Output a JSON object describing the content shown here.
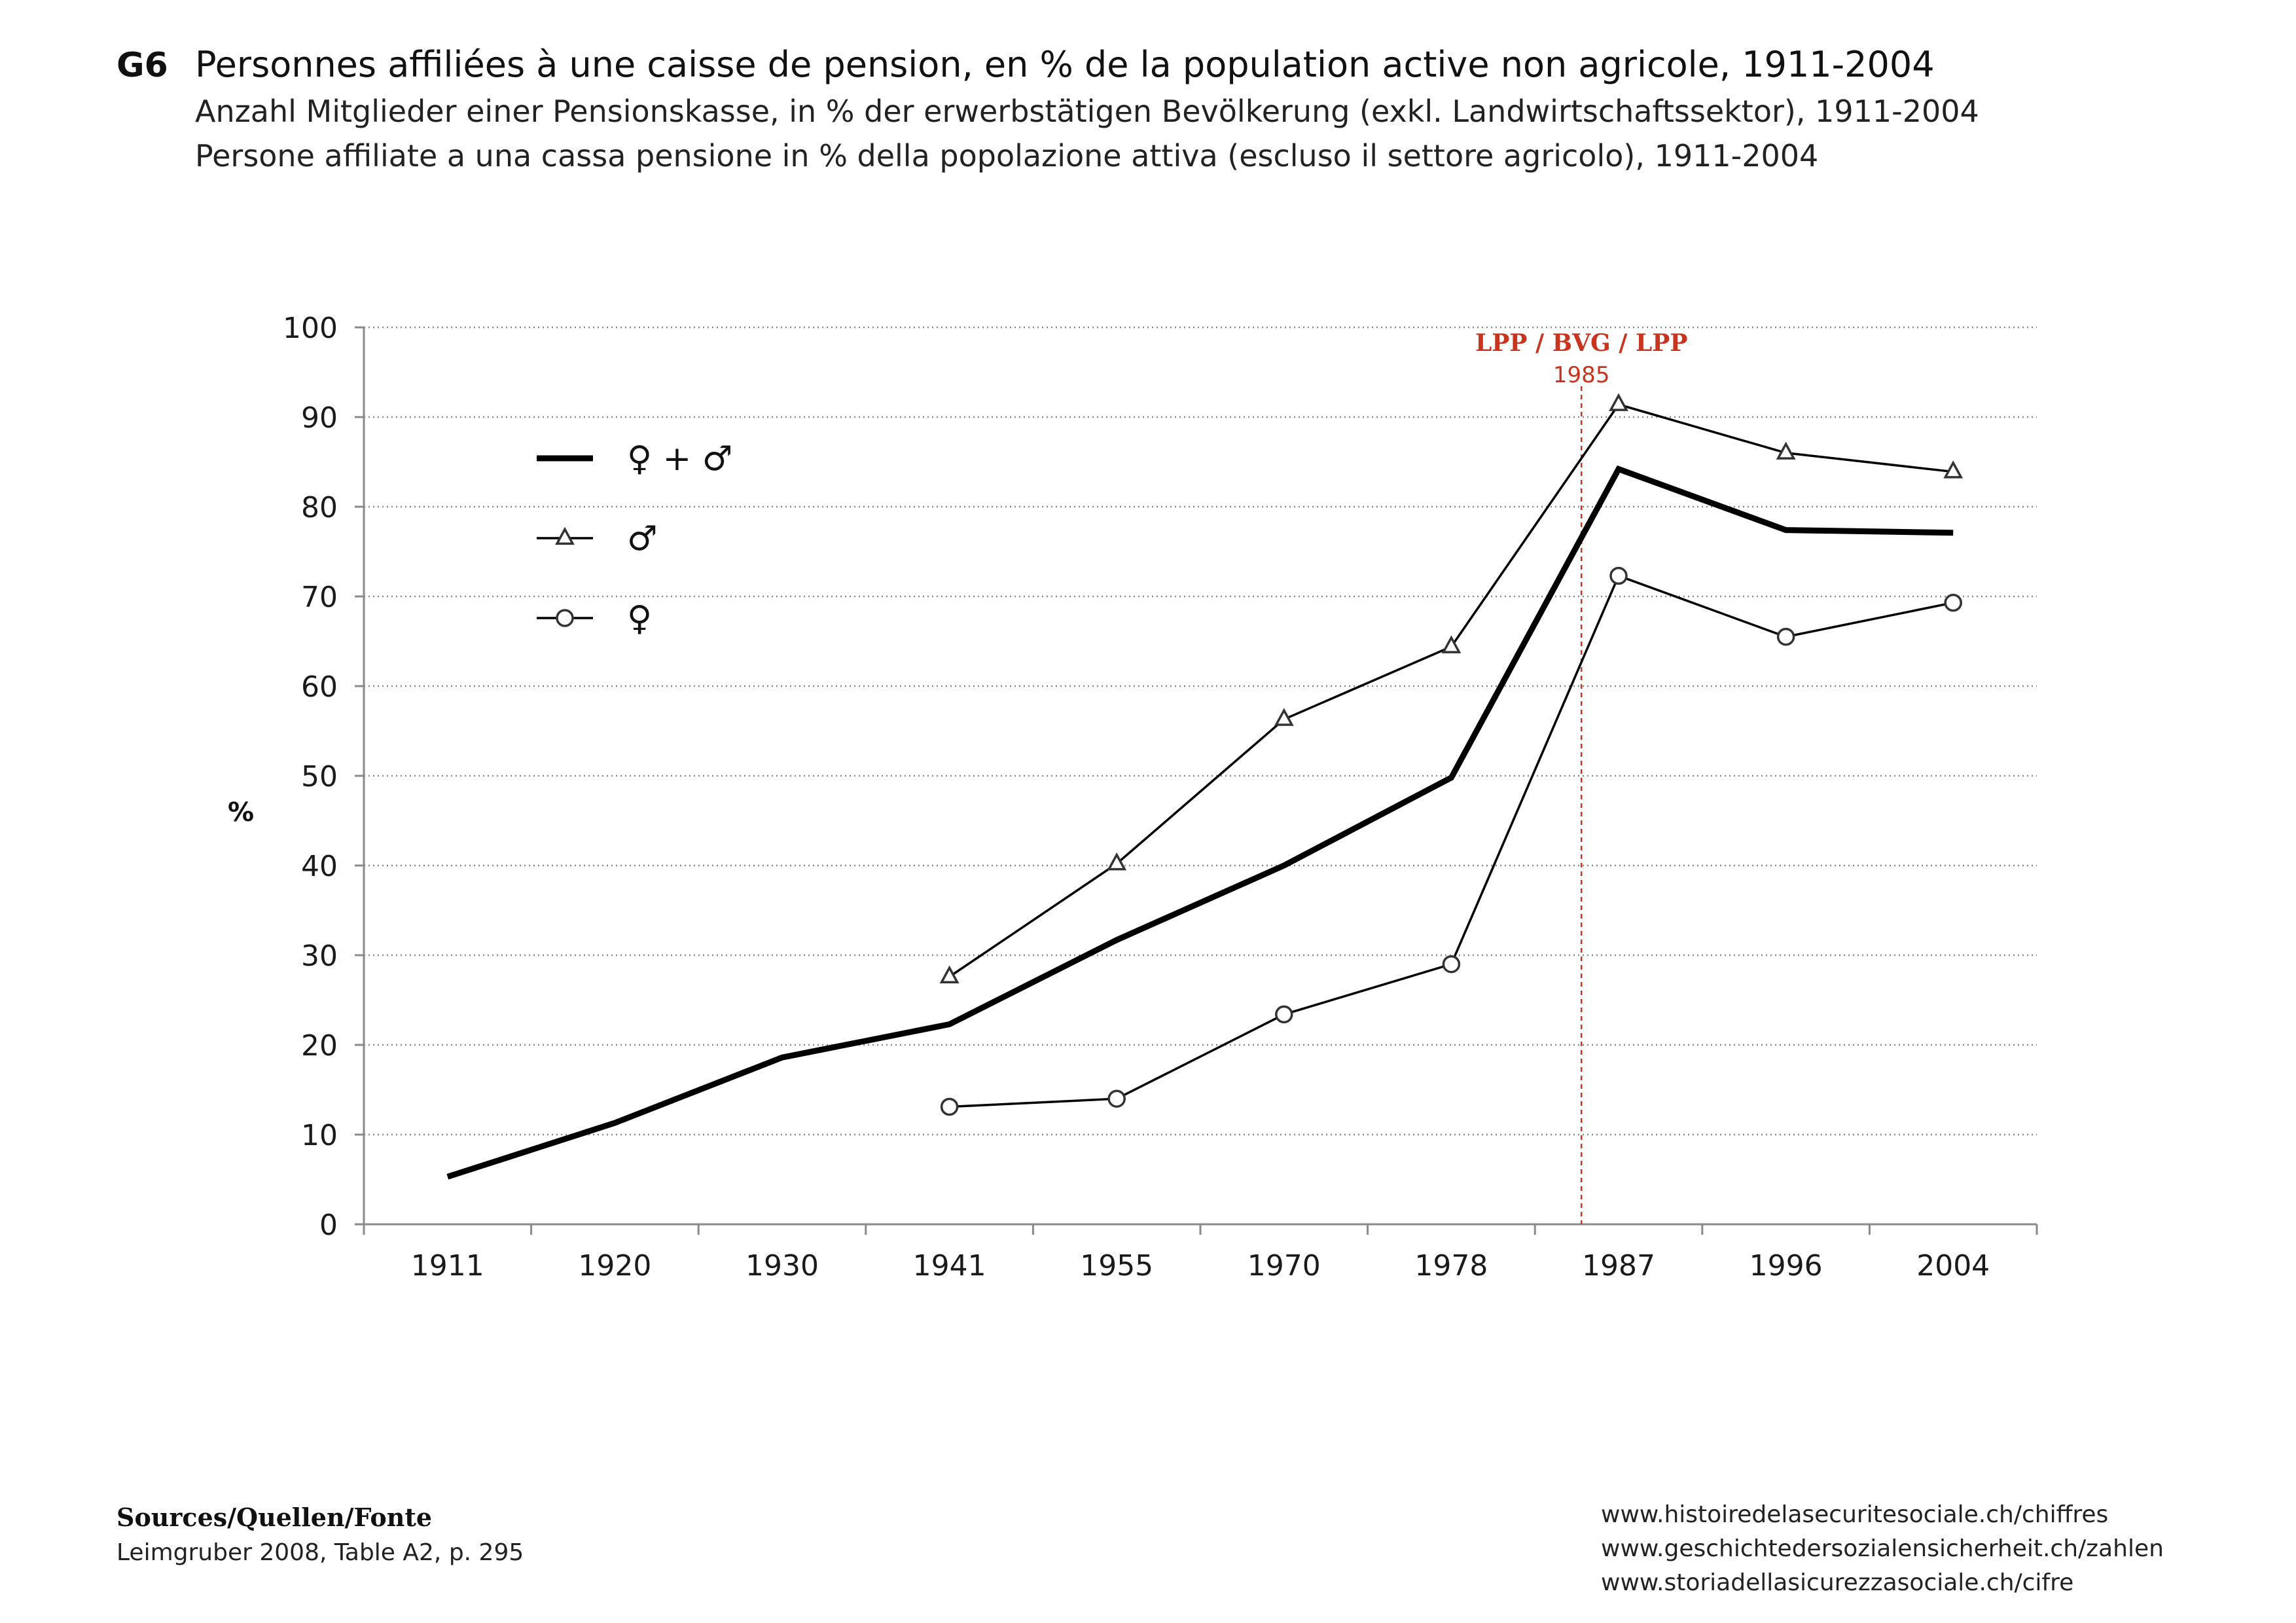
{
  "header": {
    "id": "G6",
    "title_fr": "Personnes affiliées à une caisse de pension, en % de la population active non agricole, 1911-2004",
    "title_de": "Anzahl Mitglieder einer Pensionskasse, in % der erwerbstätigen Bevölkerung (exkl. Landwirtschaftssektor), 1911-2004",
    "title_it": "Persone affiliate a una cassa pensione in % della popolazione attiva (escluso il settore agricolo), 1911-2004"
  },
  "chart_data": {
    "type": "line",
    "title": "",
    "xlabel": "",
    "ylabel": "%",
    "ylim": [
      0,
      100
    ],
    "yticks": [
      0,
      10,
      20,
      30,
      40,
      50,
      60,
      70,
      80,
      90,
      100
    ],
    "grid": true,
    "legend_position": "top-left",
    "categories": [
      "1911",
      "1920",
      "1930",
      "1941",
      "1955",
      "1970",
      "1978",
      "1987",
      "1996",
      "2004"
    ],
    "series": [
      {
        "name": "♀ + ♂",
        "marker": "none",
        "style": "thick",
        "values": [
          5.3,
          11.3,
          18.6,
          22.3,
          31.7,
          40.0,
          49.8,
          84.2,
          77.4,
          77.1
        ]
      },
      {
        "name": "♂",
        "marker": "triangle",
        "style": "thin",
        "values": [
          null,
          null,
          null,
          27.6,
          40.2,
          56.3,
          64.4,
          91.4,
          86.0,
          83.9
        ]
      },
      {
        "name": "♀",
        "marker": "circle",
        "style": "thin",
        "values": [
          null,
          null,
          null,
          13.1,
          14.0,
          23.4,
          29.0,
          72.3,
          65.5,
          69.3
        ]
      }
    ],
    "annotation": {
      "label": "LPP / BVG / LPP",
      "year": "1985",
      "color": "#c8341e"
    }
  },
  "sources": {
    "heading": "Sources/Quellen/Fonte",
    "text": "Leimgruber 2008, Table A2, p. 295"
  },
  "urls": [
    "www.histoiredelasecuritesociale.ch/chiffres",
    "www.geschichtedersozialensicherheit.ch/zahlen",
    "www.storiadellasicurezzasociale.ch/cifre"
  ]
}
